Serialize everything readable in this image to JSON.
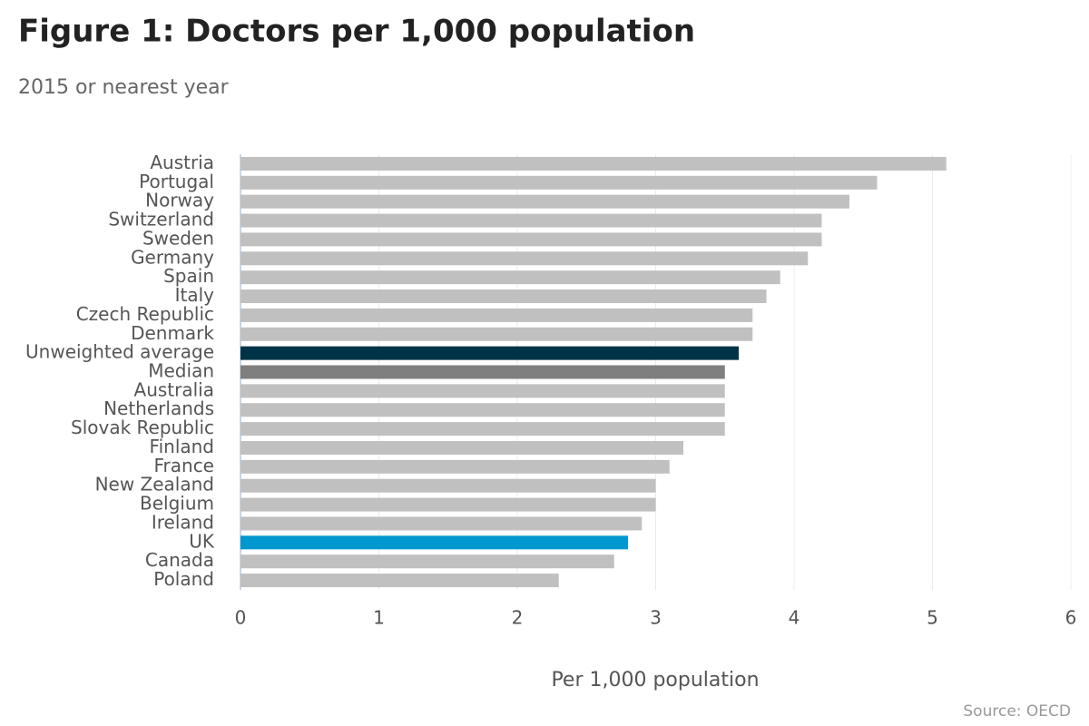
{
  "chart_data": {
    "type": "barh",
    "title": "Figure 1: Doctors per 1,000 population",
    "subtitle": "2015 or nearest year",
    "x_label": "Per 1,000 population",
    "source": "Source: OECD",
    "categories": [
      "Austria",
      "Portugal",
      "Norway",
      "Switzerland",
      "Sweden",
      "Germany",
      "Spain",
      "Italy",
      "Czech Republic",
      "Denmark",
      "Unweighted average",
      "Median",
      "Australia",
      "Netherlands",
      "Slovak Republic",
      "Finland",
      "France",
      "New Zealand",
      "Belgium",
      "Ireland",
      "UK",
      "Canada",
      "Poland"
    ],
    "values": [
      5.1,
      4.6,
      4.4,
      4.2,
      4.2,
      4.1,
      3.9,
      3.8,
      3.7,
      3.7,
      3.6,
      3.5,
      3.5,
      3.5,
      3.5,
      3.2,
      3.1,
      3.0,
      3.0,
      2.9,
      2.8,
      2.7,
      2.3
    ],
    "colors": [
      "#c0c0c0",
      "#c0c0c0",
      "#c0c0c0",
      "#c0c0c0",
      "#c0c0c0",
      "#c0c0c0",
      "#c0c0c0",
      "#c0c0c0",
      "#c0c0c0",
      "#c0c0c0",
      "#003347",
      "#7f7f7f",
      "#c0c0c0",
      "#c0c0c0",
      "#c0c0c0",
      "#c0c0c0",
      "#c0c0c0",
      "#c0c0c0",
      "#c0c0c0",
      "#c0c0c0",
      "#0098cf",
      "#c0c0c0",
      "#c0c0c0"
    ],
    "xlim": [
      0,
      6
    ],
    "xticks": [
      0,
      1,
      2,
      3,
      4,
      5,
      6
    ],
    "grid": true
  }
}
